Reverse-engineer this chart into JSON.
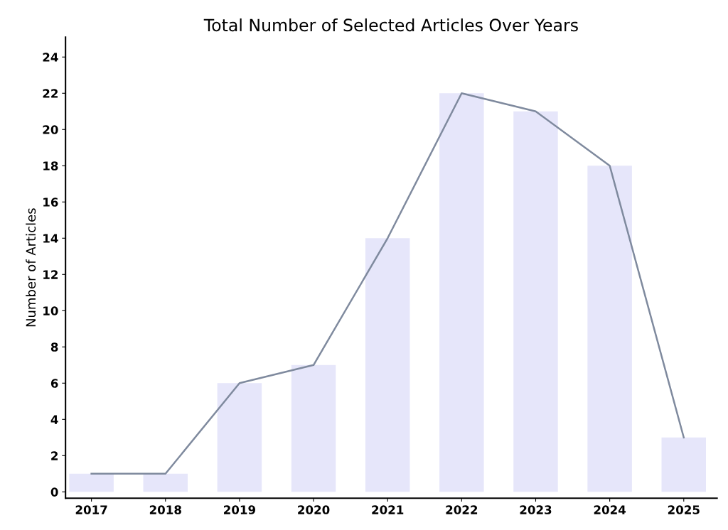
{
  "chart_data": {
    "type": "bar",
    "title": "Total Number of Selected Articles Over Years",
    "ylabel": "Number of Articles",
    "categories": [
      "2017",
      "2018",
      "2019",
      "2020",
      "2021",
      "2022",
      "2023",
      "2024",
      "2025"
    ],
    "series": [
      {
        "color": "#e6e6fa",
        "values": [
          1,
          1,
          6,
          7,
          14,
          22,
          21,
          18,
          3
        ]
      },
      {
        "type": "line",
        "color": "#7f8a9e",
        "values": [
          1,
          1,
          6,
          7,
          14,
          22,
          21,
          18,
          3
        ]
      }
    ],
    "ylim": [
      -0.35,
      25.1
    ],
    "yticks": [
      0,
      2,
      4,
      6,
      8,
      10,
      12,
      14,
      16,
      18,
      20,
      22,
      24
    ],
    "grid": false,
    "legend": false,
    "marker": "none",
    "line_style": "solid"
  }
}
